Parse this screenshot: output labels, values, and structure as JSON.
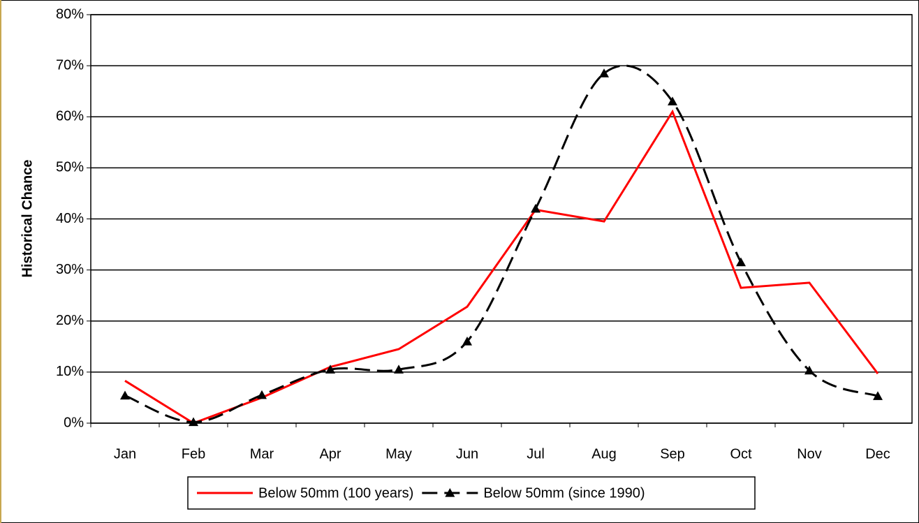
{
  "chart_data": {
    "type": "line",
    "y_label": "Historical Chance",
    "categories": [
      "Jan",
      "Feb",
      "Mar",
      "Apr",
      "May",
      "Jun",
      "Jul",
      "Aug",
      "Sep",
      "Oct",
      "Nov",
      "Dec"
    ],
    "series": [
      {
        "name": "Below 50mm (100 years)",
        "color": "#ff0000",
        "style": "solid",
        "smooth": false,
        "marker": "none",
        "values": [
          8.3,
          0,
          5,
          11,
          14.5,
          22.8,
          41.8,
          39.5,
          61,
          26.5,
          27.5,
          9.7
        ]
      },
      {
        "name": "Below 50mm (since 1990)",
        "color": "#000000",
        "style": "dashed",
        "smooth": true,
        "marker": "triangle",
        "values": [
          5.4,
          0.2,
          5.5,
          10.5,
          10.5,
          16,
          42,
          68.5,
          63,
          31.5,
          10.3,
          5.3
        ]
      }
    ],
    "ylim": [
      0,
      80
    ],
    "yticks": [
      {
        "value": 0,
        "label": "0%"
      },
      {
        "value": 10,
        "label": "10%"
      },
      {
        "value": 20,
        "label": "20%"
      },
      {
        "value": 30,
        "label": "30%"
      },
      {
        "value": 40,
        "label": "40%"
      },
      {
        "value": 50,
        "label": "50%"
      },
      {
        "value": 60,
        "label": "60%"
      },
      {
        "value": 70,
        "label": "70%"
      },
      {
        "value": 80,
        "label": "80%"
      }
    ],
    "grid": true,
    "legend": "bottom"
  }
}
